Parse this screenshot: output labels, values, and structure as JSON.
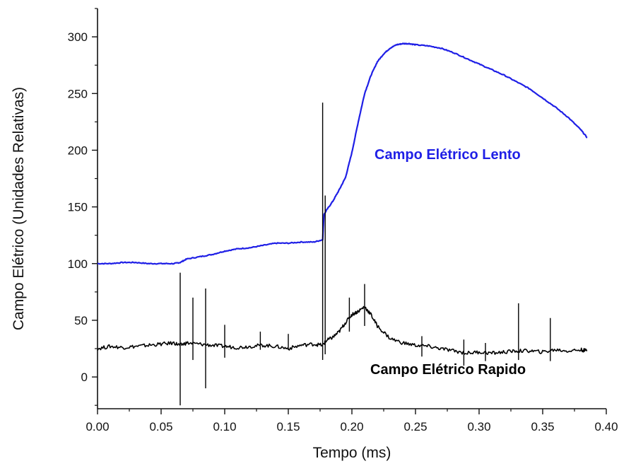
{
  "chart_data": {
    "type": "line",
    "xlabel": "Tempo (ms)",
    "ylabel": "Campo Elétrico (Unidades Relativas)",
    "xlim": [
      0.0,
      0.4
    ],
    "ylim": [
      -28,
      325
    ],
    "x_ticks": [
      "0.00",
      "0.05",
      "0.10",
      "0.15",
      "0.20",
      "0.25",
      "0.30",
      "0.35",
      "0.40"
    ],
    "y_ticks": [
      "0",
      "50",
      "100",
      "150",
      "200",
      "250",
      "300"
    ],
    "grid": false,
    "series": [
      {
        "name": "Campo Elétrico Lento",
        "color": "#1f1fe6",
        "x": [
          0.0,
          0.01,
          0.02,
          0.03,
          0.04,
          0.05,
          0.06,
          0.065,
          0.07,
          0.08,
          0.09,
          0.1,
          0.11,
          0.12,
          0.13,
          0.14,
          0.15,
          0.16,
          0.17,
          0.177,
          0.178,
          0.18,
          0.185,
          0.19,
          0.195,
          0.2,
          0.205,
          0.21,
          0.215,
          0.22,
          0.225,
          0.23,
          0.235,
          0.24,
          0.245,
          0.25,
          0.26,
          0.27,
          0.28,
          0.29,
          0.3,
          0.31,
          0.32,
          0.33,
          0.34,
          0.35,
          0.36,
          0.37,
          0.38,
          0.385
        ],
        "y": [
          100,
          100,
          101,
          101,
          100,
          100,
          100,
          101,
          104,
          106,
          108,
          111,
          113,
          114,
          116,
          118,
          118,
          119,
          119,
          121,
          143,
          147,
          155,
          165,
          176,
          198,
          225,
          250,
          266,
          278,
          285,
          290,
          293,
          294,
          294,
          293,
          292,
          290,
          286,
          281,
          276,
          271,
          266,
          260,
          254,
          246,
          238,
          229,
          218,
          211
        ]
      },
      {
        "name": "Campo Elétrico Rapido",
        "color": "#000000",
        "x": [
          0.0,
          0.01,
          0.02,
          0.03,
          0.04,
          0.05,
          0.06,
          0.065,
          0.07,
          0.08,
          0.09,
          0.1,
          0.11,
          0.12,
          0.13,
          0.14,
          0.15,
          0.16,
          0.17,
          0.177,
          0.18,
          0.185,
          0.19,
          0.195,
          0.2,
          0.205,
          0.21,
          0.215,
          0.22,
          0.23,
          0.24,
          0.25,
          0.26,
          0.27,
          0.28,
          0.29,
          0.3,
          0.31,
          0.32,
          0.33,
          0.34,
          0.35,
          0.36,
          0.37,
          0.38,
          0.385
        ],
        "y": [
          25,
          27,
          26,
          27,
          28,
          29,
          30,
          28,
          30,
          29,
          28,
          27,
          26,
          27,
          28,
          27,
          25,
          28,
          29,
          28,
          32,
          35,
          40,
          48,
          55,
          58,
          62,
          55,
          45,
          34,
          30,
          28,
          27,
          25,
          23,
          21,
          22,
          21,
          22,
          23,
          23,
          22,
          24,
          23,
          24,
          23
        ]
      }
    ],
    "spikes": [
      {
        "x": 0.065,
        "y0": -25,
        "y1": 92
      },
      {
        "x": 0.075,
        "y0": 15,
        "y1": 70
      },
      {
        "x": 0.085,
        "y0": -10,
        "y1": 78
      },
      {
        "x": 0.1,
        "y0": 17,
        "y1": 46
      },
      {
        "x": 0.128,
        "y0": 24,
        "y1": 40
      },
      {
        "x": 0.15,
        "y0": 24,
        "y1": 38
      },
      {
        "x": 0.177,
        "y0": 15,
        "y1": 242
      },
      {
        "x": 0.179,
        "y0": 20,
        "y1": 160
      },
      {
        "x": 0.198,
        "y0": 40,
        "y1": 70
      },
      {
        "x": 0.21,
        "y0": 45,
        "y1": 82
      },
      {
        "x": 0.255,
        "y0": 18,
        "y1": 36
      },
      {
        "x": 0.288,
        "y0": 10,
        "y1": 33
      },
      {
        "x": 0.305,
        "y0": 14,
        "y1": 30
      },
      {
        "x": 0.331,
        "y0": 15,
        "y1": 65
      },
      {
        "x": 0.356,
        "y0": 14,
        "y1": 52
      }
    ]
  }
}
